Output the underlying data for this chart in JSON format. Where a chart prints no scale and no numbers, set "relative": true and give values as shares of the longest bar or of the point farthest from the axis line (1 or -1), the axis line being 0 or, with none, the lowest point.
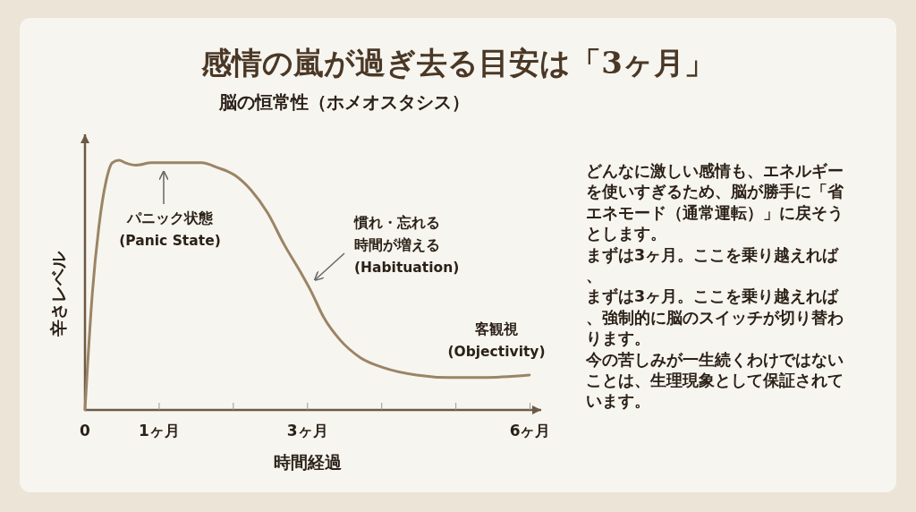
{
  "chart_data": {
    "type": "line",
    "title": "感情の嵐が過ぎ去る目安は「3ヶ月」",
    "subtitle": "脳の恒常性（ホメオスタシス）",
    "xlabel": "時間経過",
    "ylabel": "辛さレベル",
    "relative": true,
    "color": "#9b8466",
    "x": [
      0,
      0.1,
      0.19,
      0.28,
      0.37,
      0.46,
      0.54,
      0.68,
      0.9,
      1.12,
      1.35,
      1.57,
      1.79,
      2.02,
      2.24,
      2.46,
      2.69,
      2.91,
      3.04,
      3.22,
      3.44,
      3.71,
      4.02,
      4.47,
      4.92,
      5.36,
      5.99
    ],
    "values": [
      0,
      0.47,
      0.74,
      0.91,
      0.99,
      1,
      0.99,
      0.98,
      0.99,
      0.99,
      0.99,
      0.99,
      0.97,
      0.94,
      0.88,
      0.79,
      0.66,
      0.55,
      0.48,
      0.37,
      0.28,
      0.21,
      0.17,
      0.14,
      0.13,
      0.13,
      0.14
    ],
    "xlim": [
      0,
      6.15
    ],
    "xticks": [
      0,
      {
        "value": 1,
        "label": "1ヶ月"
      },
      {
        "value": 2,
        "label": null
      },
      {
        "value": 3,
        "label": "3ヶ月"
      },
      {
        "value": 4,
        "label": null
      },
      {
        "value": 5,
        "label": null
      },
      {
        "value": 6,
        "label": "6ヶ月"
      }
    ],
    "annotations": [
      "パニック状態\n(Panic State)",
      "慣れ・忘れる時間が増える\n(Habituation)",
      "客観視\n(Objectivity)",
      "どんなに激しい感情も、エネルギーを使いすぎるため、脳が勝手に「省エネモード（通常運転）」に戻そうとします。",
      "まずは3ヶ月。ここを乗り越えれば、",
      "まずは3ヶ月。ここを乗り越えれば、強制的に脳のスイッチが切り替わります。",
      "今の苦しみが一生続くわけではないことは、生理現象として保証されています。"
    ]
  }
}
